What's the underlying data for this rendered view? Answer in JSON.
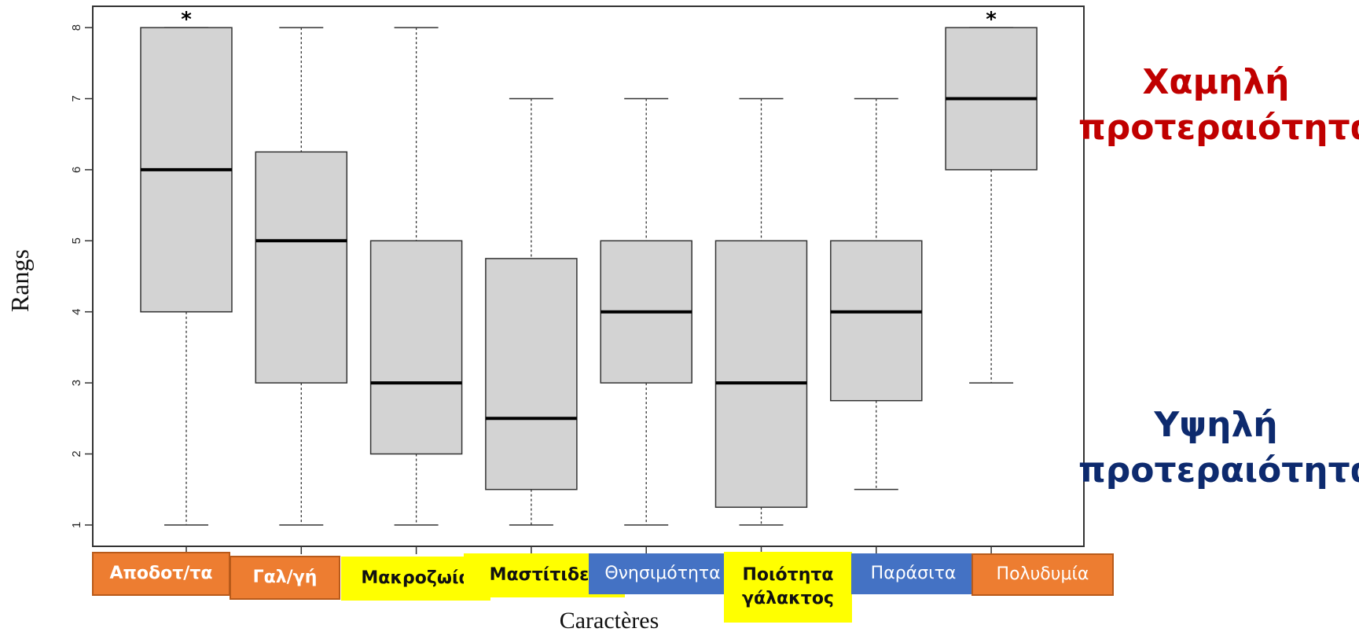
{
  "chart_data": {
    "type": "boxplot",
    "xlabel": "Caractères",
    "ylabel": "Rangs",
    "ylim": [
      0.7,
      8.3
    ],
    "yticks": [
      1,
      2,
      3,
      4,
      5,
      6,
      7,
      8
    ],
    "categories": [
      "Αποδοτ/τα",
      "Γαλ/γή",
      "Μακροζωία",
      "Μαστίτιδες",
      "Θνησιμότητα",
      "Ποιότητα γάλακτος",
      "Παράσιτα",
      "Πολυδυμία"
    ],
    "boxes": [
      {
        "min": 1,
        "q1": 4,
        "median": 6,
        "q3": 8,
        "max": 8,
        "marker": "*"
      },
      {
        "min": 1,
        "q1": 3,
        "median": 5,
        "q3": 6.25,
        "max": 8,
        "marker": ""
      },
      {
        "min": 1,
        "q1": 2,
        "median": 3,
        "q3": 5,
        "max": 8,
        "marker": ""
      },
      {
        "min": 1,
        "q1": 1.5,
        "median": 2.5,
        "q3": 4.75,
        "max": 7,
        "marker": ""
      },
      {
        "min": 1,
        "q1": 3,
        "median": 4,
        "q3": 5,
        "max": 7,
        "marker": ""
      },
      {
        "min": 1,
        "q1": 1.25,
        "median": 3,
        "q3": 5,
        "max": 7,
        "marker": ""
      },
      {
        "min": 1.5,
        "q1": 2.75,
        "median": 4,
        "q3": 5,
        "max": 7,
        "marker": ""
      },
      {
        "min": 3,
        "q1": 6,
        "median": 7,
        "q3": 8,
        "max": 8,
        "marker": "*"
      }
    ],
    "category_label_colors": [
      "#ed7d31",
      "#ed7d31",
      "#ffff00",
      "#ffff00",
      "#4472c4",
      "#ffff00",
      "#4472c4",
      "#ed7d31"
    ],
    "box_fill": "#d3d3d3",
    "grid": false
  },
  "annotations": {
    "low_priority": "Χαμηλή προτεραιότητα",
    "high_priority": "Υψηλή προτεραιότητα",
    "low_priority_color": "#c00000",
    "high_priority_color": "#0d2a6e"
  }
}
